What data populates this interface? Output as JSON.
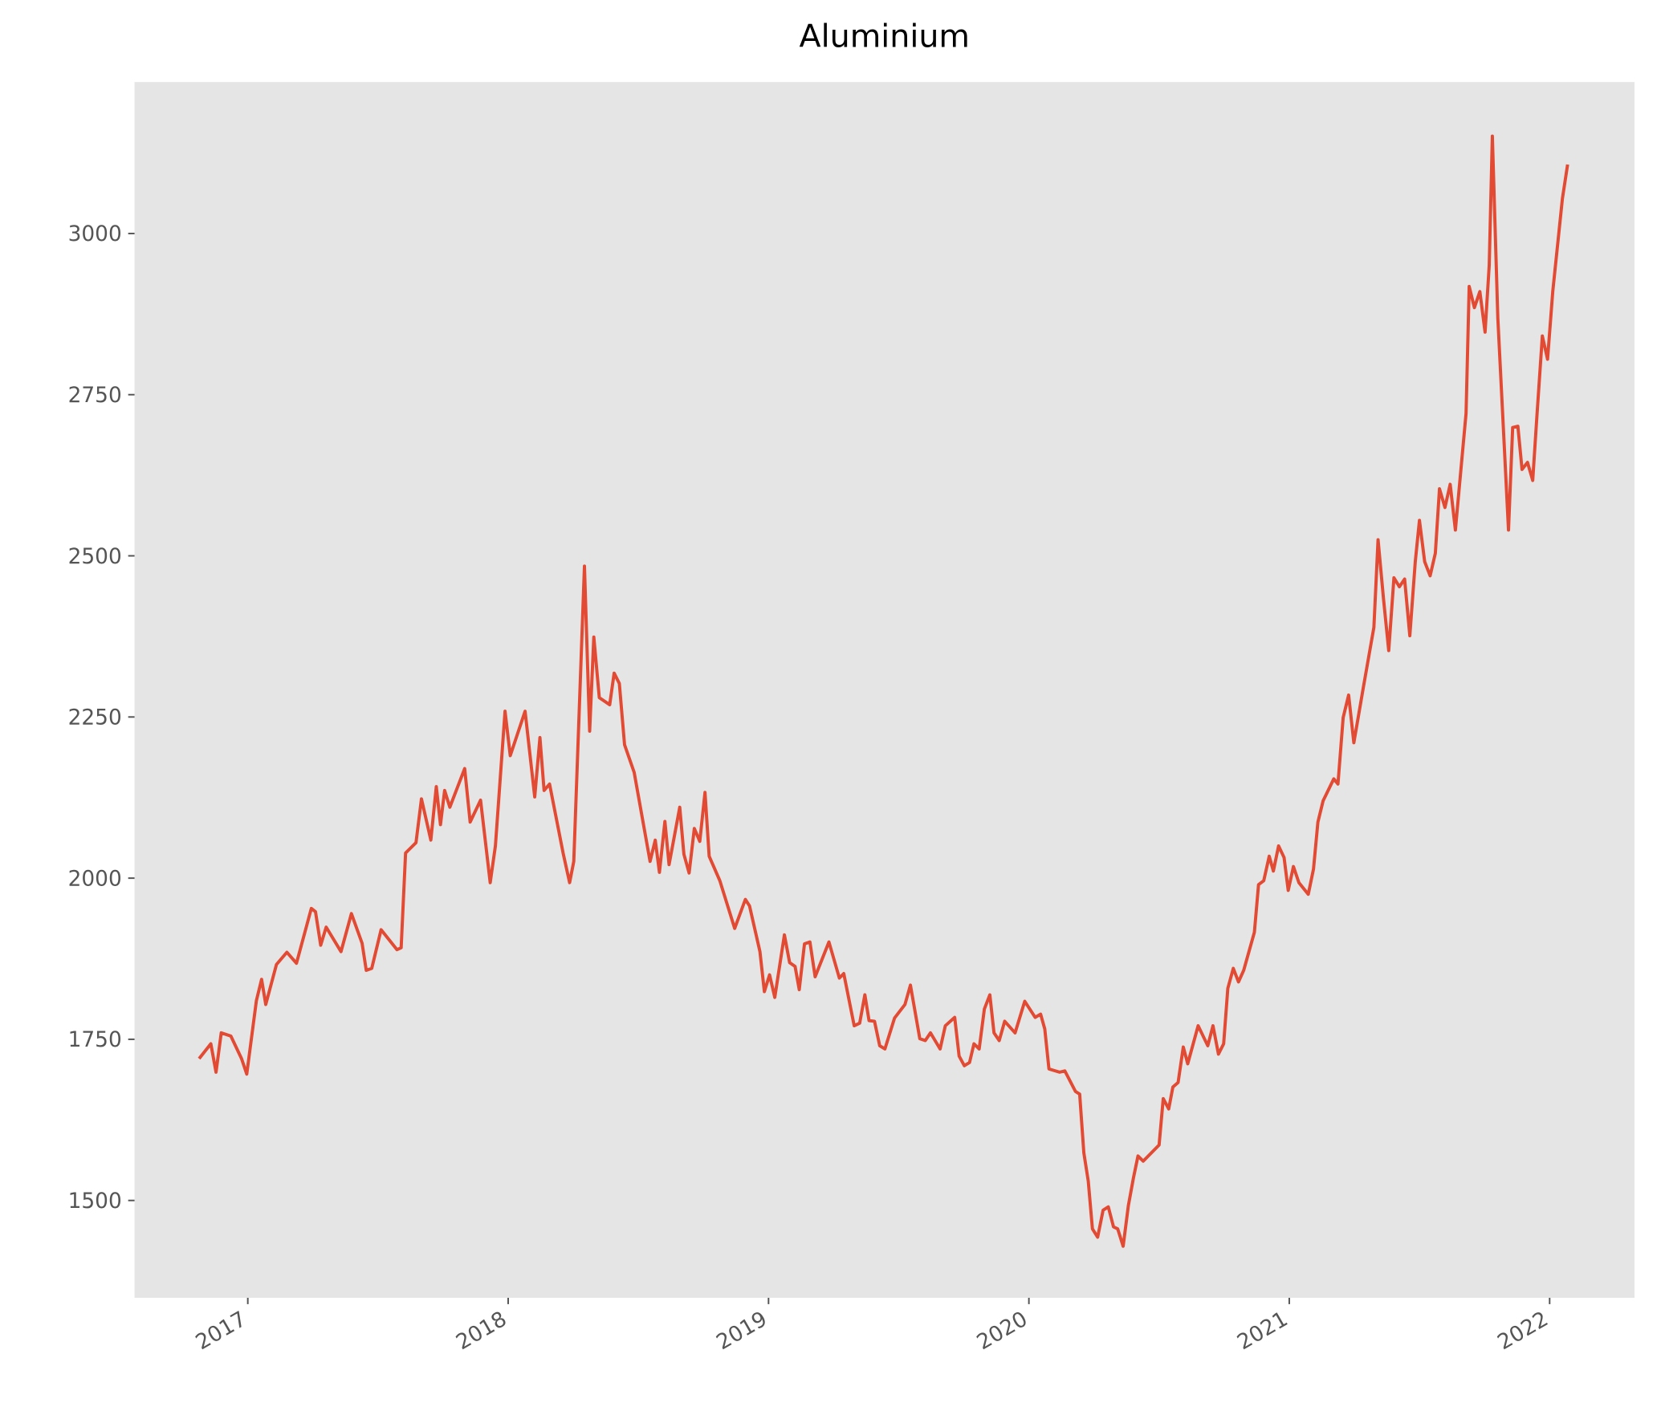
{
  "chart_data": {
    "type": "line",
    "title": "Aluminium",
    "x": [
      2016.813,
      2016.858,
      2016.878,
      2016.898,
      2016.935,
      2016.976,
      2016.996,
      2017.033,
      2017.053,
      2017.069,
      2017.11,
      2017.15,
      2017.187,
      2017.244,
      2017.26,
      2017.28,
      2017.301,
      2017.358,
      2017.398,
      2017.439,
      2017.455,
      2017.476,
      2017.512,
      2017.573,
      2017.589,
      2017.606,
      2017.646,
      2017.667,
      2017.703,
      2017.724,
      2017.74,
      2017.756,
      2017.776,
      2017.833,
      2017.854,
      2017.894,
      2017.931,
      2017.951,
      2017.988,
      2018.008,
      2018.065,
      2018.102,
      2018.122,
      2018.138,
      2018.159,
      2018.211,
      2018.236,
      2018.252,
      2018.293,
      2018.313,
      2018.329,
      2018.35,
      2018.39,
      2018.407,
      2018.427,
      2018.447,
      2018.484,
      2018.545,
      2018.565,
      2018.581,
      2018.602,
      2018.618,
      2018.659,
      2018.675,
      2018.695,
      2018.715,
      2018.736,
      2018.756,
      2018.772,
      2018.813,
      2018.87,
      2018.911,
      2018.927,
      2018.967,
      2018.984,
      2019.004,
      2019.024,
      2019.061,
      2019.081,
      2019.102,
      2019.118,
      2019.138,
      2019.159,
      2019.179,
      2019.232,
      2019.272,
      2019.289,
      2019.329,
      2019.35,
      2019.37,
      2019.386,
      2019.407,
      2019.427,
      2019.447,
      2019.484,
      2019.524,
      2019.545,
      2019.581,
      2019.602,
      2019.622,
      2019.659,
      2019.679,
      2019.715,
      2019.732,
      2019.752,
      2019.772,
      2019.789,
      2019.809,
      2019.829,
      2019.85,
      2019.866,
      2019.886,
      2019.907,
      2019.947,
      2019.984,
      2020.024,
      2020.045,
      2020.061,
      2020.077,
      2020.118,
      2020.138,
      2020.179,
      2020.195,
      2020.211,
      2020.228,
      2020.244,
      2020.264,
      2020.285,
      2020.305,
      2020.325,
      2020.341,
      2020.362,
      2020.382,
      2020.402,
      2020.419,
      2020.439,
      2020.5,
      2020.516,
      2020.537,
      2020.553,
      2020.573,
      2020.593,
      2020.61,
      2020.65,
      2020.687,
      2020.707,
      2020.728,
      2020.748,
      2020.764,
      2020.785,
      2020.805,
      2020.825,
      2020.866,
      2020.882,
      2020.902,
      2020.923,
      2020.939,
      2020.959,
      2020.98,
      2020.996,
      2021.016,
      2021.037,
      2021.073,
      2021.093,
      2021.11,
      2021.13,
      2021.171,
      2021.187,
      2021.207,
      2021.228,
      2021.248,
      2021.285,
      2021.325,
      2021.341,
      2021.362,
      2021.382,
      2021.402,
      2021.423,
      2021.443,
      2021.463,
      2021.484,
      2021.5,
      2021.52,
      2021.541,
      2021.561,
      2021.577,
      2021.598,
      2021.618,
      2021.638,
      2021.679,
      2021.691,
      2021.711,
      2021.732,
      2021.752,
      2021.768,
      2021.78,
      2021.801,
      2021.842,
      2021.858,
      2021.878,
      2021.894,
      2021.915,
      2021.935,
      2021.951,
      2021.972,
      2021.992,
      2022.012,
      2022.049,
      2022.069
    ],
    "series": [
      {
        "color": "#e24a33",
        "values": [
          1720,
          1743,
          1699,
          1760,
          1755,
          1720,
          1696,
          1810,
          1843,
          1804,
          1866,
          1885,
          1868,
          1953,
          1948,
          1896,
          1924,
          1886,
          1945,
          1899,
          1857,
          1860,
          1920,
          1889,
          1892,
          2039,
          2055,
          2123,
          2059,
          2142,
          2083,
          2136,
          2110,
          2170,
          2087,
          2121,
          1993,
          2050,
          2259,
          2190,
          2259,
          2126,
          2218,
          2136,
          2146,
          2039,
          1993,
          2026,
          2484,
          2228,
          2374,
          2280,
          2269,
          2318,
          2302,
          2207,
          2164,
          2026,
          2059,
          2009,
          2088,
          2021,
          2110,
          2037,
          2008,
          2077,
          2057,
          2133,
          2034,
          1996,
          1922,
          1967,
          1957,
          1886,
          1824,
          1850,
          1815,
          1912,
          1869,
          1863,
          1827,
          1898,
          1901,
          1847,
          1901,
          1845,
          1852,
          1771,
          1775,
          1819,
          1779,
          1778,
          1740,
          1735,
          1783,
          1804,
          1834,
          1751,
          1748,
          1760,
          1735,
          1771,
          1784,
          1724,
          1709,
          1714,
          1743,
          1735,
          1797,
          1819,
          1760,
          1748,
          1778,
          1760,
          1809,
          1784,
          1789,
          1766,
          1704,
          1699,
          1701,
          1669,
          1665,
          1574,
          1530,
          1456,
          1443,
          1485,
          1490,
          1459,
          1456,
          1429,
          1492,
          1536,
          1569,
          1561,
          1586,
          1658,
          1642,
          1676,
          1683,
          1738,
          1712,
          1771,
          1740,
          1771,
          1727,
          1743,
          1829,
          1860,
          1839,
          1857,
          1916,
          1990,
          1996,
          2034,
          2011,
          2050,
          2032,
          1981,
          2018,
          1993,
          1975,
          2014,
          2087,
          2120,
          2154,
          2146,
          2249,
          2284,
          2210,
          2297,
          2389,
          2525,
          2433,
          2353,
          2466,
          2452,
          2464,
          2376,
          2491,
          2555,
          2491,
          2469,
          2504,
          2604,
          2575,
          2611,
          2540,
          2721,
          2918,
          2885,
          2910,
          2847,
          2951,
          3151,
          2869,
          2540,
          2699,
          2701,
          2634,
          2645,
          2617,
          2716,
          2841,
          2805,
          2910,
          3054,
          3107
        ]
      }
    ],
    "xlim": [
      2016.565,
      2022.326
    ],
    "xticks": [
      2017,
      2018,
      2019,
      2020,
      2021,
      2022
    ],
    "ylim": [
      1349,
      3235
    ],
    "yticks": [
      1500,
      1750,
      2000,
      2250,
      2500,
      2750,
      3000
    ],
    "background": "#e5e5e5",
    "grid": false
  }
}
